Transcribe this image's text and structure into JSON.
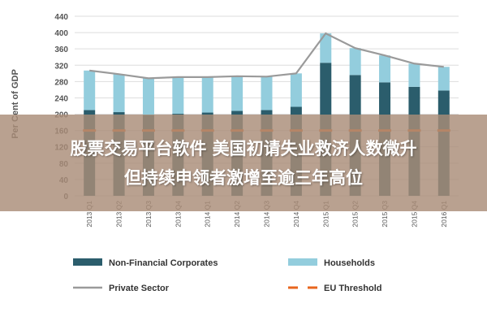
{
  "chart_data": {
    "type": "bar",
    "ylabel": "Per Cent of GDP",
    "ylim": [
      0,
      440
    ],
    "yticks": [
      0,
      40,
      80,
      120,
      160,
      200,
      240,
      280,
      320,
      360,
      400,
      440
    ],
    "categories": [
      "2013 Q1",
      "2013 Q2",
      "2013 Q3",
      "2013 Q4",
      "2014 Q1",
      "2014 Q2",
      "2014 Q3",
      "2014 Q4",
      "2015 Q1",
      "2015 Q2",
      "2015 Q3",
      "2015 Q4",
      "2016 Q1"
    ],
    "series": [
      {
        "name": "Non-Financial Corporates",
        "kind": "stacked-bar",
        "color": "#2b5d6c",
        "values": [
          210,
          205,
          198,
          201,
          204,
          208,
          210,
          218,
          326,
          296,
          278,
          267,
          258
        ]
      },
      {
        "name": "Households",
        "kind": "stacked-bar",
        "color": "#93cddd",
        "values": [
          97,
          93,
          90,
          90,
          87,
          85,
          82,
          82,
          72,
          66,
          66,
          57,
          58
        ]
      },
      {
        "name": "Private Sector",
        "kind": "line",
        "color": "#9a9a9a",
        "values": [
          307,
          298,
          288,
          291,
          291,
          293,
          292,
          300,
          398,
          362,
          344,
          324,
          316
        ]
      },
      {
        "name": "EU Threshold",
        "kind": "dashed-line",
        "color": "#e8651e",
        "values": [
          160,
          160,
          160,
          160,
          160,
          160,
          160,
          160,
          160,
          160,
          160,
          160,
          160
        ]
      }
    ],
    "legend_position": "bottom",
    "grid": true
  },
  "banner": {
    "line1": "股票交易平台软件 美国初请失业救济人数微升",
    "line2": "但持续申领者激增至逾三年高位"
  }
}
